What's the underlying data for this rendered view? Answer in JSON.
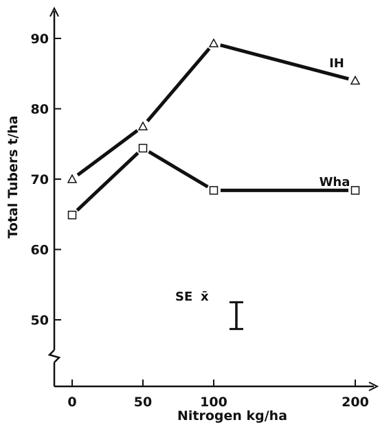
{
  "chart_data": {
    "type": "line",
    "xlabel": "Nitrogen kg/ha",
    "ylabel": "Total Tubers t/ha",
    "x_ticks": [
      "0",
      "50",
      "100",
      "200"
    ],
    "x_positions": [
      0,
      50,
      100,
      200
    ],
    "y_ticks": [
      "50",
      "60",
      "70",
      "80",
      "90"
    ],
    "y_tick_values": [
      50,
      60,
      70,
      80,
      90
    ],
    "xlim": [
      -12,
      220
    ],
    "ylim": [
      43,
      96
    ],
    "axis_break": "y",
    "grid": false,
    "legend": "none",
    "series": [
      {
        "name": "IH",
        "marker": "triangle",
        "x": [
          0,
          50,
          100,
          200
        ],
        "values": [
          70.0,
          77.5,
          89.3,
          84.0
        ]
      },
      {
        "name": "Wha",
        "marker": "square",
        "x": [
          0,
          50,
          100,
          200
        ],
        "values": [
          64.9,
          74.4,
          68.4,
          68.4
        ]
      }
    ],
    "annotation": {
      "label_main": "SE",
      "label_symbol": "x̄",
      "error_bar_value_top": 52.5,
      "error_bar_value_bottom": 48.7,
      "error_bar_x": 117
    },
    "colors": {
      "line": "#111111",
      "marker_fill": "#ffffff"
    }
  }
}
